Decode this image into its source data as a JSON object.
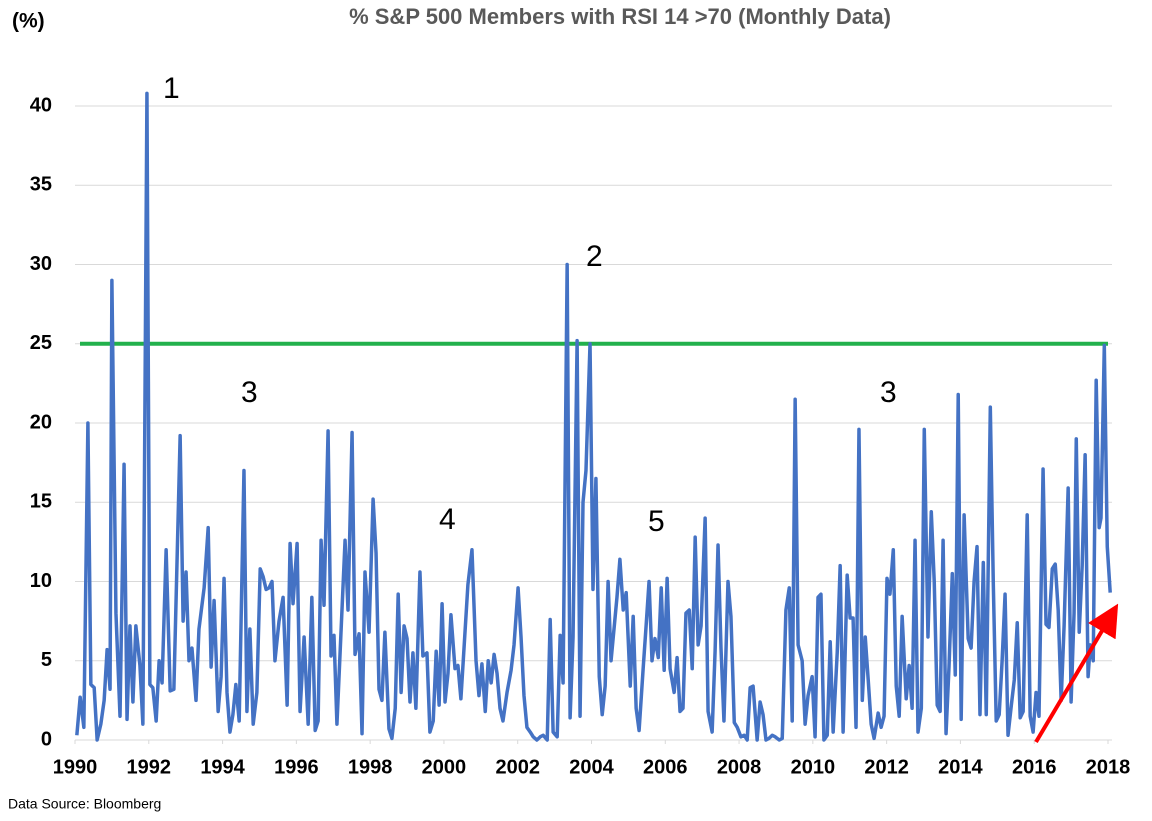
{
  "chart_data": {
    "type": "line",
    "title": "% S&P 500 Members with RSI 14 >70 (Monthly Data)",
    "y_label": "(%)",
    "source": "Data Source:  Bloomberg",
    "annotations": [
      "1",
      "2",
      "3",
      "4",
      "5",
      "3"
    ],
    "xlim": [
      1990,
      2018
    ],
    "xticks": [
      1990,
      1992,
      1994,
      1996,
      1998,
      2000,
      2002,
      2004,
      2006,
      2008,
      2010,
      2012,
      2014,
      2016,
      2018
    ],
    "ylim": [
      0,
      40
    ],
    "yticks": [
      0,
      5,
      10,
      15,
      20,
      25,
      30,
      35,
      40
    ],
    "grid": true,
    "reference_line": {
      "value": 25,
      "color": "#22b14c"
    },
    "x": [
      1990.05,
      1990.14,
      1990.24,
      1990.35,
      1990.43,
      1990.52,
      1990.6,
      1990.7,
      1990.79,
      1990.87,
      1990.95,
      1991,
      1991.11,
      1991.22,
      1991.33,
      1991.41,
      1991.49,
      1991.57,
      1991.65,
      1991.76,
      1991.84,
      1991.95,
      1992.03,
      1992.11,
      1992.2,
      1992.28,
      1992.36,
      1992.47,
      1992.58,
      1992.68,
      1992.85,
      1992.93,
      1993.01,
      1993.09,
      1993.17,
      1993.28,
      1993.36,
      1993.5,
      1993.61,
      1993.69,
      1993.77,
      1993.88,
      1993.96,
      1994.04,
      1994.12,
      1994.2,
      1994.28,
      1994.36,
      1994.45,
      1994.58,
      1994.66,
      1994.74,
      1994.83,
      1994.93,
      1995.02,
      1995.1,
      1995.18,
      1995.26,
      1995.34,
      1995.42,
      1995.53,
      1995.64,
      1995.75,
      1995.83,
      1995.91,
      1996.02,
      1996.1,
      1996.21,
      1996.32,
      1996.42,
      1996.51,
      1996.59,
      1996.67,
      1996.75,
      1996.86,
      1996.94,
      1997.02,
      1997.1,
      1997.32,
      1997.4,
      1997.51,
      1997.59,
      1997.7,
      1997.78,
      1997.86,
      1997.97,
      1998.08,
      1998.16,
      1998.24,
      1998.32,
      1998.4,
      1998.51,
      1998.59,
      1998.68,
      1998.76,
      1998.84,
      1998.92,
      1999,
      1999.08,
      1999.16,
      1999.24,
      1999.35,
      1999.43,
      1999.54,
      1999.62,
      1999.71,
      1999.79,
      1999.87,
      1999.95,
      2000.03,
      2000.11,
      2000.19,
      2000.3,
      2000.38,
      2000.46,
      2000.55,
      2000.65,
      2000.76,
      2000.87,
      2000.95,
      2001.03,
      2001.12,
      2001.2,
      2001.28,
      2001.36,
      2001.44,
      2001.52,
      2001.6,
      2001.71,
      2001.82,
      2001.9,
      2002.01,
      2002.09,
      2002.17,
      2002.25,
      2002.34,
      2002.42,
      2002.52,
      2002.61,
      2002.69,
      2002.8,
      2002.88,
      2002.96,
      2003.07,
      2003.15,
      2003.23,
      2003.34,
      2003.42,
      2003.5,
      2003.61,
      2003.69,
      2003.77,
      2003.85,
      2003.96,
      2004.04,
      2004.12,
      2004.21,
      2004.29,
      2004.37,
      2004.45,
      2004.53,
      2004.61,
      2004.69,
      2004.77,
      2004.86,
      2004.94,
      2005.05,
      2005.13,
      2005.21,
      2005.29,
      2005.4,
      2005.48,
      2005.56,
      2005.64,
      2005.72,
      2005.81,
      2005.89,
      2005.97,
      2006.05,
      2006.13,
      2006.24,
      2006.32,
      2006.4,
      2006.48,
      2006.56,
      2006.65,
      2006.73,
      2006.81,
      2006.89,
      2006.97,
      2007.08,
      2007.16,
      2007.27,
      2007.35,
      2007.43,
      2007.51,
      2007.59,
      2007.7,
      2007.78,
      2007.87,
      2007.95,
      2008.05,
      2008.14,
      2008.22,
      2008.3,
      2008.38,
      2008.49,
      2008.57,
      2008.65,
      2008.73,
      2008.81,
      2008.9,
      2008.98,
      2009.09,
      2009.17,
      2009.27,
      2009.36,
      2009.44,
      2009.52,
      2009.6,
      2009.71,
      2009.79,
      2009.87,
      2009.98,
      2010.06,
      2010.14,
      2010.22,
      2010.3,
      2010.39,
      2010.47,
      2010.55,
      2010.66,
      2010.74,
      2010.82,
      2010.93,
      2011.01,
      2011.09,
      2011.17,
      2011.25,
      2011.34,
      2011.42,
      2011.5,
      2011.58,
      2011.66,
      2011.77,
      2011.85,
      2011.93,
      2012.01,
      2012.09,
      2012.18,
      2012.26,
      2012.34,
      2012.42,
      2012.53,
      2012.61,
      2012.69,
      2012.77,
      2012.85,
      2012.94,
      2013.02,
      2013.12,
      2013.21,
      2013.29,
      2013.37,
      2013.45,
      2013.53,
      2013.61,
      2013.69,
      2013.78,
      2013.86,
      2013.94,
      2014.02,
      2014.1,
      2014.21,
      2014.29,
      2014.37,
      2014.45,
      2014.53,
      2014.62,
      2014.7,
      2014.81,
      2014.89,
      2014.97,
      2015.05,
      2015.13,
      2015.21,
      2015.29,
      2015.38,
      2015.46,
      2015.54,
      2015.62,
      2015.7,
      2015.81,
      2015.89,
      2015.97,
      2016.05,
      2016.13,
      2016.24,
      2016.32,
      2016.4,
      2016.49,
      2016.57,
      2016.65,
      2016.73,
      2016.81,
      2016.92,
      2017,
      2017.08,
      2017.14,
      2017.22,
      2017.3,
      2017.38,
      2017.46,
      2017.52,
      2017.6,
      2017.68,
      2017.76,
      2017.81,
      2017.9,
      2017.98,
      2018.06
    ],
    "series": [
      {
        "color": "#4472c4",
        "values": [
          0.3,
          2.7,
          0.8,
          20,
          3.5,
          3.3,
          0,
          1,
          2.5,
          5.7,
          3.2,
          29,
          8,
          1.5,
          17.4,
          1.3,
          7.2,
          2.4,
          7.2,
          4.7,
          1,
          40.8,
          3.5,
          3.3,
          1.2,
          5,
          3.6,
          12,
          3.1,
          3.2,
          19.2,
          7.5,
          10.6,
          5,
          5.8,
          2.5,
          7,
          9.6,
          13.4,
          4.6,
          8.8,
          1.8,
          4,
          10.2,
          3,
          0.5,
          1.6,
          3.5,
          1.2,
          17,
          1.8,
          7,
          1,
          3,
          10.8,
          10.3,
          9.5,
          9.6,
          10,
          5,
          7.5,
          9,
          2.2,
          12.4,
          8.6,
          12.4,
          1.8,
          6.5,
          1,
          9,
          0.6,
          1.2,
          12.6,
          8.5,
          19.5,
          5.3,
          6.6,
          1,
          12.6,
          8.2,
          19.4,
          5.4,
          6.7,
          0.4,
          10.6,
          6.8,
          15.2,
          11.8,
          3.2,
          2.5,
          6.8,
          0.7,
          0.1,
          2,
          9.2,
          3,
          7.2,
          6.4,
          2.4,
          5.5,
          2,
          10.6,
          5.3,
          5.5,
          0.5,
          1.2,
          5.6,
          2.2,
          8.6,
          2.4,
          4.2,
          7.9,
          4.5,
          4.7,
          2.6,
          6,
          9.8,
          12,
          5,
          2.8,
          4.8,
          1.8,
          5,
          3.6,
          5.4,
          4.2,
          2,
          1.2,
          3,
          4.4,
          6,
          9.6,
          6.5,
          2.8,
          0.8,
          0.5,
          0.2,
          0,
          0.2,
          0.3,
          0,
          7.6,
          0.5,
          0.2,
          6.6,
          3.6,
          30,
          1.4,
          6.5,
          25.2,
          1.5,
          15,
          17,
          25,
          9.5,
          16.5,
          4,
          1.6,
          3.4,
          10,
          5,
          7,
          9,
          11.4,
          8.2,
          9.3,
          3.4,
          7.8,
          2,
          0.6,
          4.5,
          7.2,
          10,
          5,
          6.4,
          5.2,
          9.6,
          4.4,
          10.2,
          4.5,
          3,
          5.2,
          1.8,
          2,
          8,
          8.2,
          4.5,
          12.8,
          6,
          7.2,
          14,
          1.8,
          0.5,
          5.6,
          12.3,
          5.8,
          1.2,
          10,
          7.8,
          1.1,
          0.8,
          0.2,
          0.3,
          0,
          3.3,
          3.4,
          0,
          2.4,
          1.6,
          0,
          0.1,
          0.3,
          0.2,
          0,
          0.1,
          8.2,
          9.6,
          1.2,
          21.5,
          6,
          5,
          1,
          2.8,
          4,
          0.2,
          9,
          9.2,
          0,
          0.3,
          6.2,
          0.5,
          5.5,
          11,
          0.5,
          10.4,
          7.7,
          7.7,
          0.8,
          19.6,
          2.5,
          6.5,
          3.8,
          1,
          0.1,
          1.7,
          0.8,
          1.5,
          10.2,
          9.2,
          12,
          3.4,
          1.5,
          7.8,
          2.6,
          4.7,
          2,
          12.6,
          0.5,
          2,
          19.6,
          6.5,
          14.4,
          10,
          2.2,
          1.8,
          12.6,
          0.4,
          4.6,
          10.5,
          4.1,
          21.8,
          1.3,
          14.2,
          6.4,
          5.8,
          10,
          12.2,
          1.6,
          11.2,
          1.6,
          21,
          10,
          1.2,
          1.6,
          5,
          9.2,
          0.3,
          2.2,
          3.8,
          7.4,
          1.4,
          1.8,
          14.2,
          1.5,
          0.5,
          3,
          1.5,
          17.1,
          7.3,
          7.1,
          10.8,
          11.1,
          8.2,
          2.5,
          7.2,
          15.9,
          2.4,
          8,
          19,
          6.8,
          11,
          18,
          4,
          6,
          5,
          22.7,
          13.4,
          14,
          24.9,
          12.2,
          9.3
        ]
      }
    ]
  }
}
